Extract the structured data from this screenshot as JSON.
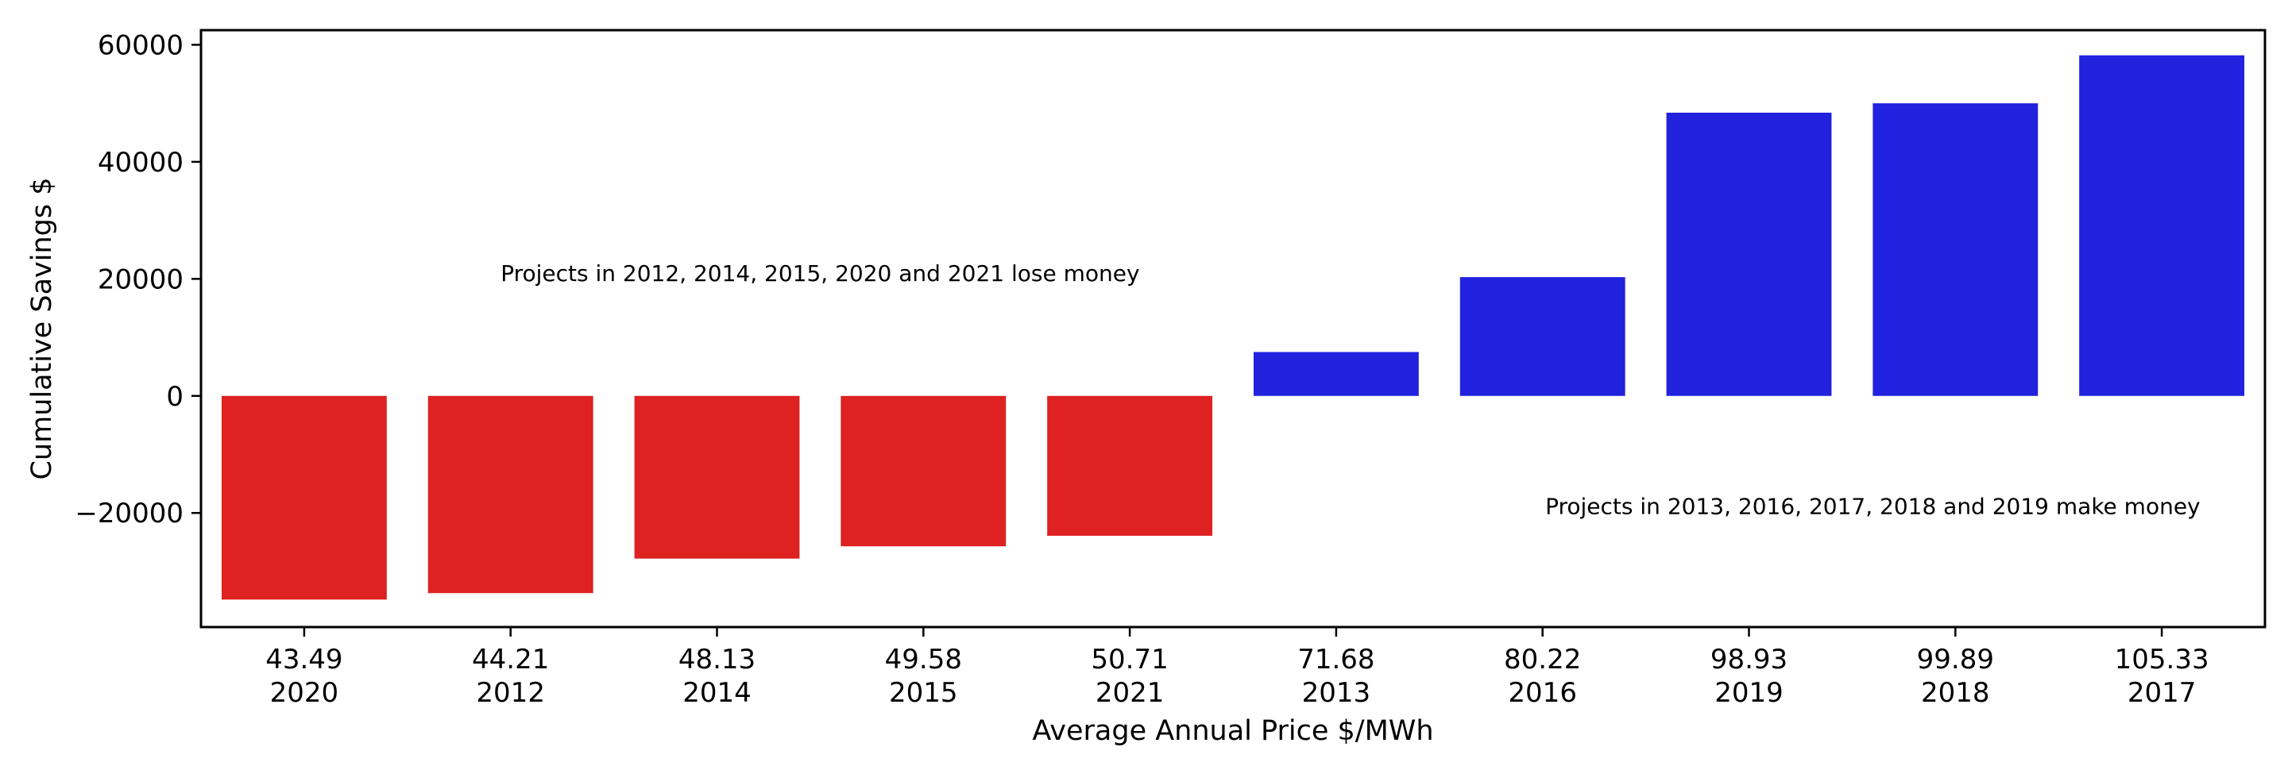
{
  "chart_data": {
    "type": "bar",
    "title": "",
    "xlabel": "Average Annual Price $/MWh",
    "ylabel": "Cumulative Savings $",
    "ylim": [
      -39500,
      62500
    ],
    "yticks": [
      -20000,
      0,
      20000,
      40000,
      60000
    ],
    "ytick_labels": [
      "−20000",
      "0",
      "20000",
      "40000",
      "60000"
    ],
    "grid": false,
    "colors": {
      "negative": "#de2121",
      "positive": "#2121de"
    },
    "categories": [
      {
        "price": "43.49",
        "year": "2020",
        "value": -34800,
        "color": "#de2121"
      },
      {
        "price": "44.21",
        "year": "2012",
        "value": -33700,
        "color": "#de2121"
      },
      {
        "price": "48.13",
        "year": "2014",
        "value": -27800,
        "color": "#de2121"
      },
      {
        "price": "49.58",
        "year": "2015",
        "value": -25700,
        "color": "#de2121"
      },
      {
        "price": "50.71",
        "year": "2021",
        "value": -23900,
        "color": "#de2121"
      },
      {
        "price": "71.68",
        "year": "2013",
        "value": 7500,
        "color": "#2121de"
      },
      {
        "price": "80.22",
        "year": "2016",
        "value": 20300,
        "color": "#2121de"
      },
      {
        "price": "98.93",
        "year": "2019",
        "value": 48400,
        "color": "#2121de"
      },
      {
        "price": "99.89",
        "year": "2018",
        "value": 50000,
        "color": "#2121de"
      },
      {
        "price": "105.33",
        "year": "2017",
        "value": 58200,
        "color": "#2121de"
      }
    ],
    "annotations": [
      {
        "text": "Projects in 2012, 2014, 2015, 2020 and 2021 lose money",
        "x_index": 2.5,
        "y": 21000
      },
      {
        "text": "Projects in 2013, 2016, 2017, 2018 and 2019 make money",
        "x_index": 7.6,
        "y": -18800
      }
    ]
  }
}
